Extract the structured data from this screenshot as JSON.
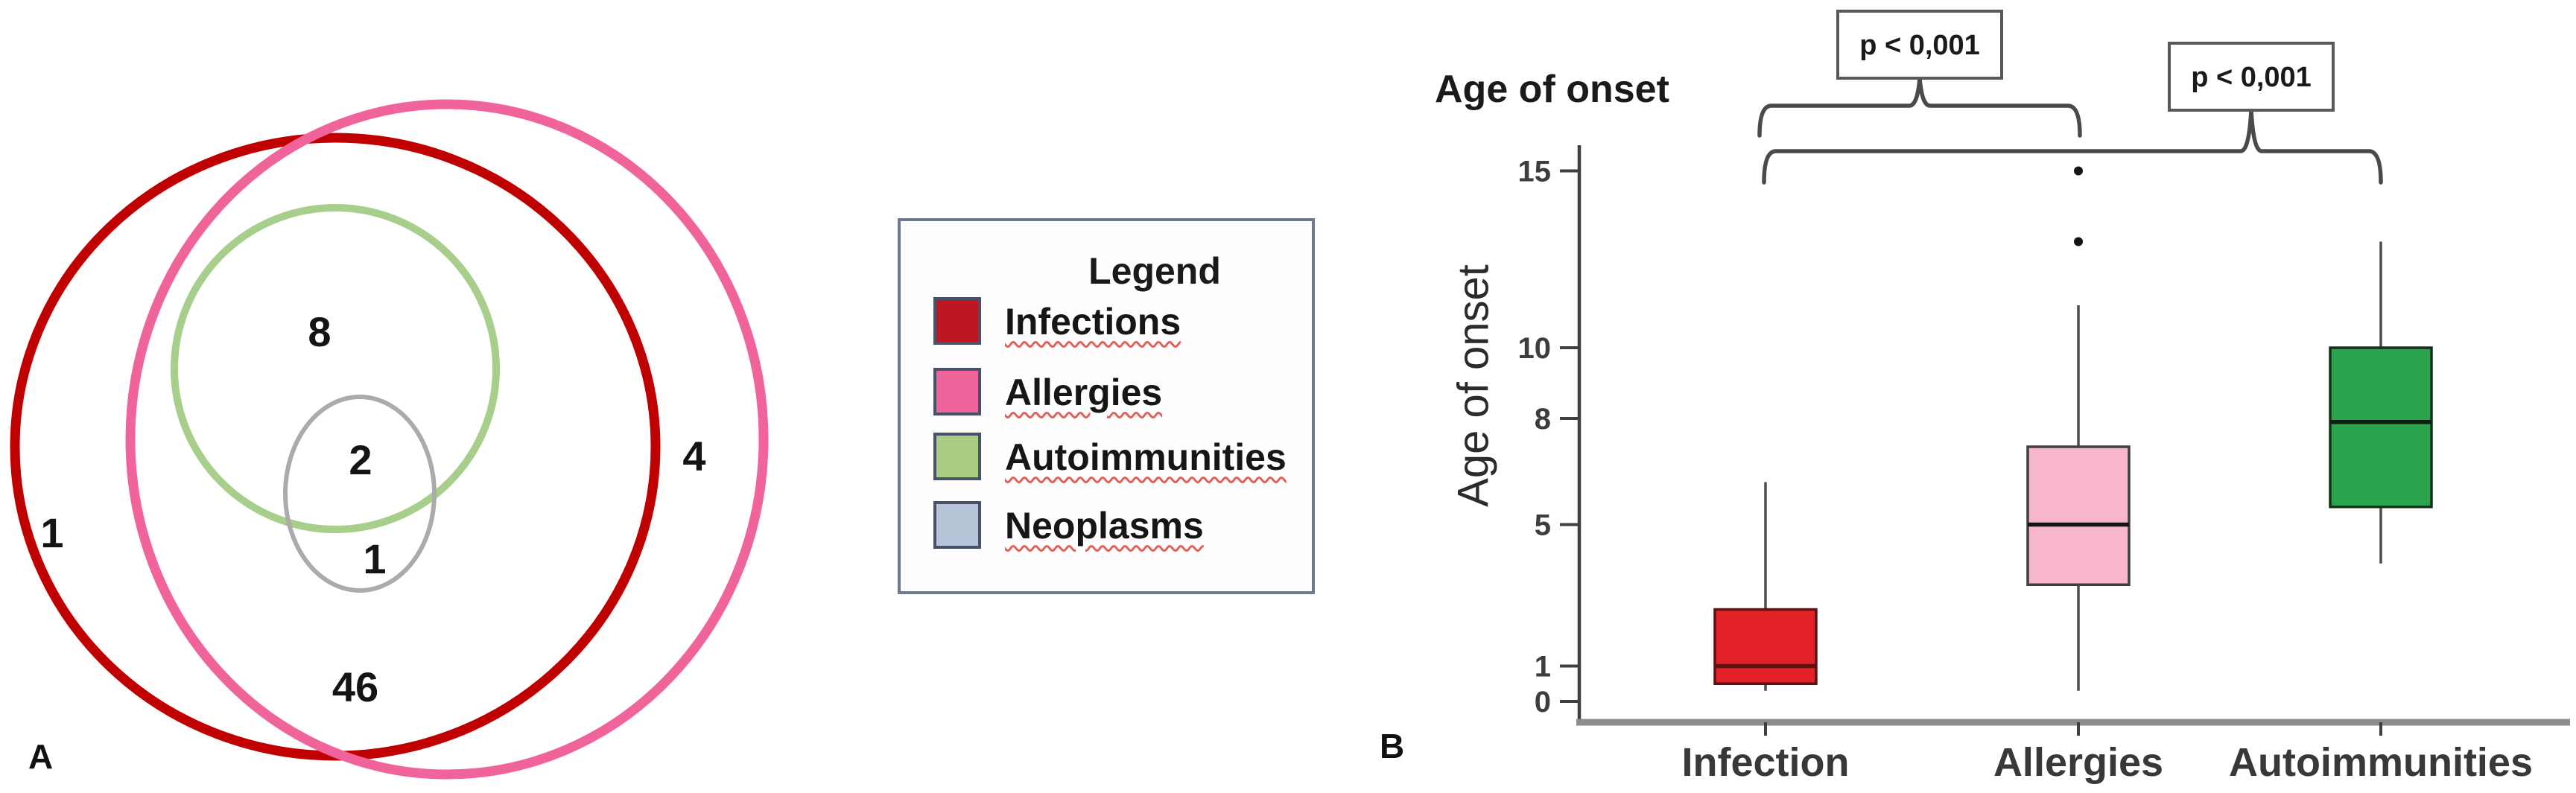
{
  "figure": {
    "panel_a_label": "A",
    "panel_b_label": "B"
  },
  "venn": {
    "counts": {
      "infections_only": "1",
      "allergies_only": "4",
      "infections_allergies": "46",
      "autoimmunities": "8",
      "autoimmunities_neoplasms": "2",
      "neoplasms_only": "1"
    },
    "circle_colors": {
      "infections": "#C00000",
      "allergies": "#F0649B",
      "autoimmunities": "#A8CE8B",
      "neoplasms": "#ABABAB"
    }
  },
  "legend": {
    "title": "Legend",
    "items": [
      {
        "label": "Infections",
        "color": "#BE1621"
      },
      {
        "label": "Allergies",
        "color": "#F0649B"
      },
      {
        "label": "Autoimmunities",
        "color": "#A9CD83"
      },
      {
        "label": "Neoplasms",
        "color": "#B7C3D6"
      }
    ]
  },
  "chart": {
    "title": "Age of onset",
    "ylabel": "Age of onset"
  },
  "chart_data": {
    "type": "boxplot",
    "title": "Age of onset",
    "ylabel": "Age of onset",
    "ylim": [
      -0.6,
      16.2
    ],
    "yticks": [
      0,
      1,
      5,
      8,
      10,
      15
    ],
    "grid": false,
    "categories": [
      "Infection",
      "Allergies",
      "Autoimmunities"
    ],
    "series": [
      {
        "name": "Infection",
        "fill": "#E32227",
        "edge": "#5f1012",
        "median_color": "#5f1012",
        "whisker_low": 0.3,
        "q1": 0.5,
        "median": 1.0,
        "q3": 2.6,
        "whisker_high": 6.2,
        "outliers": []
      },
      {
        "name": "Allergies",
        "fill": "#F7B6CB",
        "edge": "#3f3f3f",
        "median_color": "#141414",
        "whisker_low": 0.3,
        "q1": 3.3,
        "median": 5.0,
        "q3": 7.2,
        "whisker_high": 11.2,
        "outliers": [
          13,
          15
        ]
      },
      {
        "name": "Autoimmunities",
        "fill": "#2CA34D",
        "edge": "#16301a",
        "median_color": "#0d1f10",
        "whisker_low": 3.9,
        "q1": 5.5,
        "median": 7.9,
        "q3": 10.0,
        "whisker_high": 13.0,
        "outliers": []
      }
    ],
    "significance": [
      {
        "text": "p < 0,001",
        "from": "Infection",
        "to": "Allergies"
      },
      {
        "text": "p < 0,001",
        "from": "Infection",
        "to": "Autoimmunities"
      }
    ]
  }
}
